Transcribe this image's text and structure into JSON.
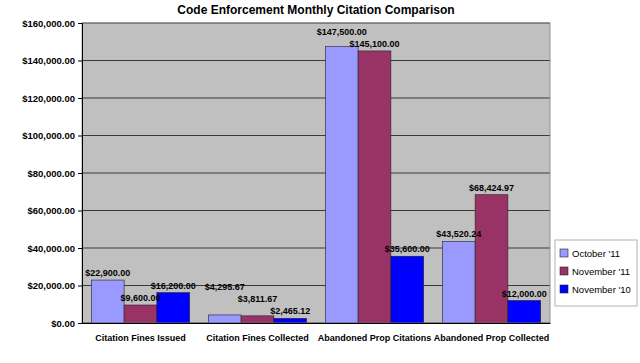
{
  "chart_data": {
    "type": "bar",
    "title": "Code Enforcement Monthly Citation Comparison",
    "categories": [
      "Citation Fines Issued",
      "Citation Fines Collected",
      "Abandoned Prop Citations",
      "Abandoned Prop Collected"
    ],
    "series": [
      {
        "name": "October '11",
        "color": "#9999ff",
        "values": [
          22900,
          4295.67,
          147500,
          43520.24
        ],
        "value_labels": [
          "$22,900.00",
          "$4,295.67",
          "$147,500.00",
          "$43,520.24"
        ]
      },
      {
        "name": "November '11",
        "color": "#993366",
        "values": [
          9600,
          3811.67,
          145100,
          68424.97
        ],
        "value_labels": [
          "$9,600.00",
          "$3,811.67",
          "$145,100.00",
          "$68,424.97"
        ]
      },
      {
        "name": "November '10",
        "color": "#0000ff",
        "values": [
          16200,
          2465.12,
          35600,
          12000
        ],
        "value_labels": [
          "$16,200.00",
          "$2,465.12",
          "$35,600.00",
          "$12,000.00"
        ]
      }
    ],
    "ylim": [
      0,
      160000
    ],
    "yticks": [
      {
        "value": 0,
        "label": "$0.00"
      },
      {
        "value": 20000,
        "label": "$20,000.00"
      },
      {
        "value": 40000,
        "label": "$40,000.00"
      },
      {
        "value": 60000,
        "label": "$60,000.00"
      },
      {
        "value": 80000,
        "label": "$80,000.00"
      },
      {
        "value": 100000,
        "label": "$100,000.00"
      },
      {
        "value": 120000,
        "label": "$120,000.00"
      },
      {
        "value": 140000,
        "label": "$140,000.00"
      },
      {
        "value": 160000,
        "label": "$160,000.00"
      }
    ],
    "grid": true,
    "legend": "right",
    "data_labels": true
  }
}
